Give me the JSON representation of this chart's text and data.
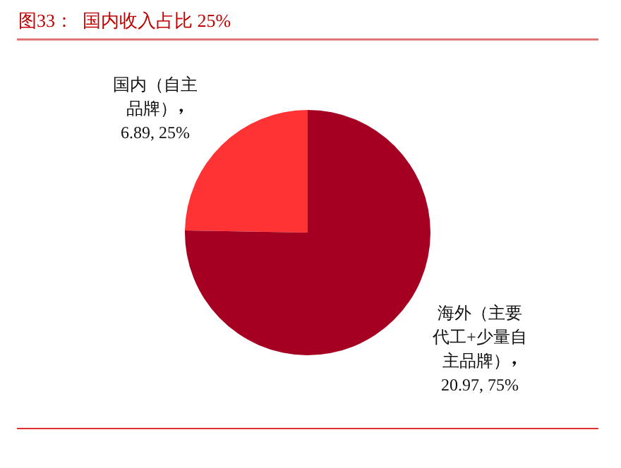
{
  "chart_data": {
    "type": "pie",
    "title": "图33：  国内收入占比 25%",
    "categories": [
      "国内（自主品牌）",
      "海外（主要代工+少量自主品牌）"
    ],
    "values": [
      6.89,
      20.97
    ],
    "value_labels": [
      "6.89, 25%",
      "20.97, 75%"
    ],
    "colors": [
      "#ff3334",
      "#a50021"
    ]
  }
}
